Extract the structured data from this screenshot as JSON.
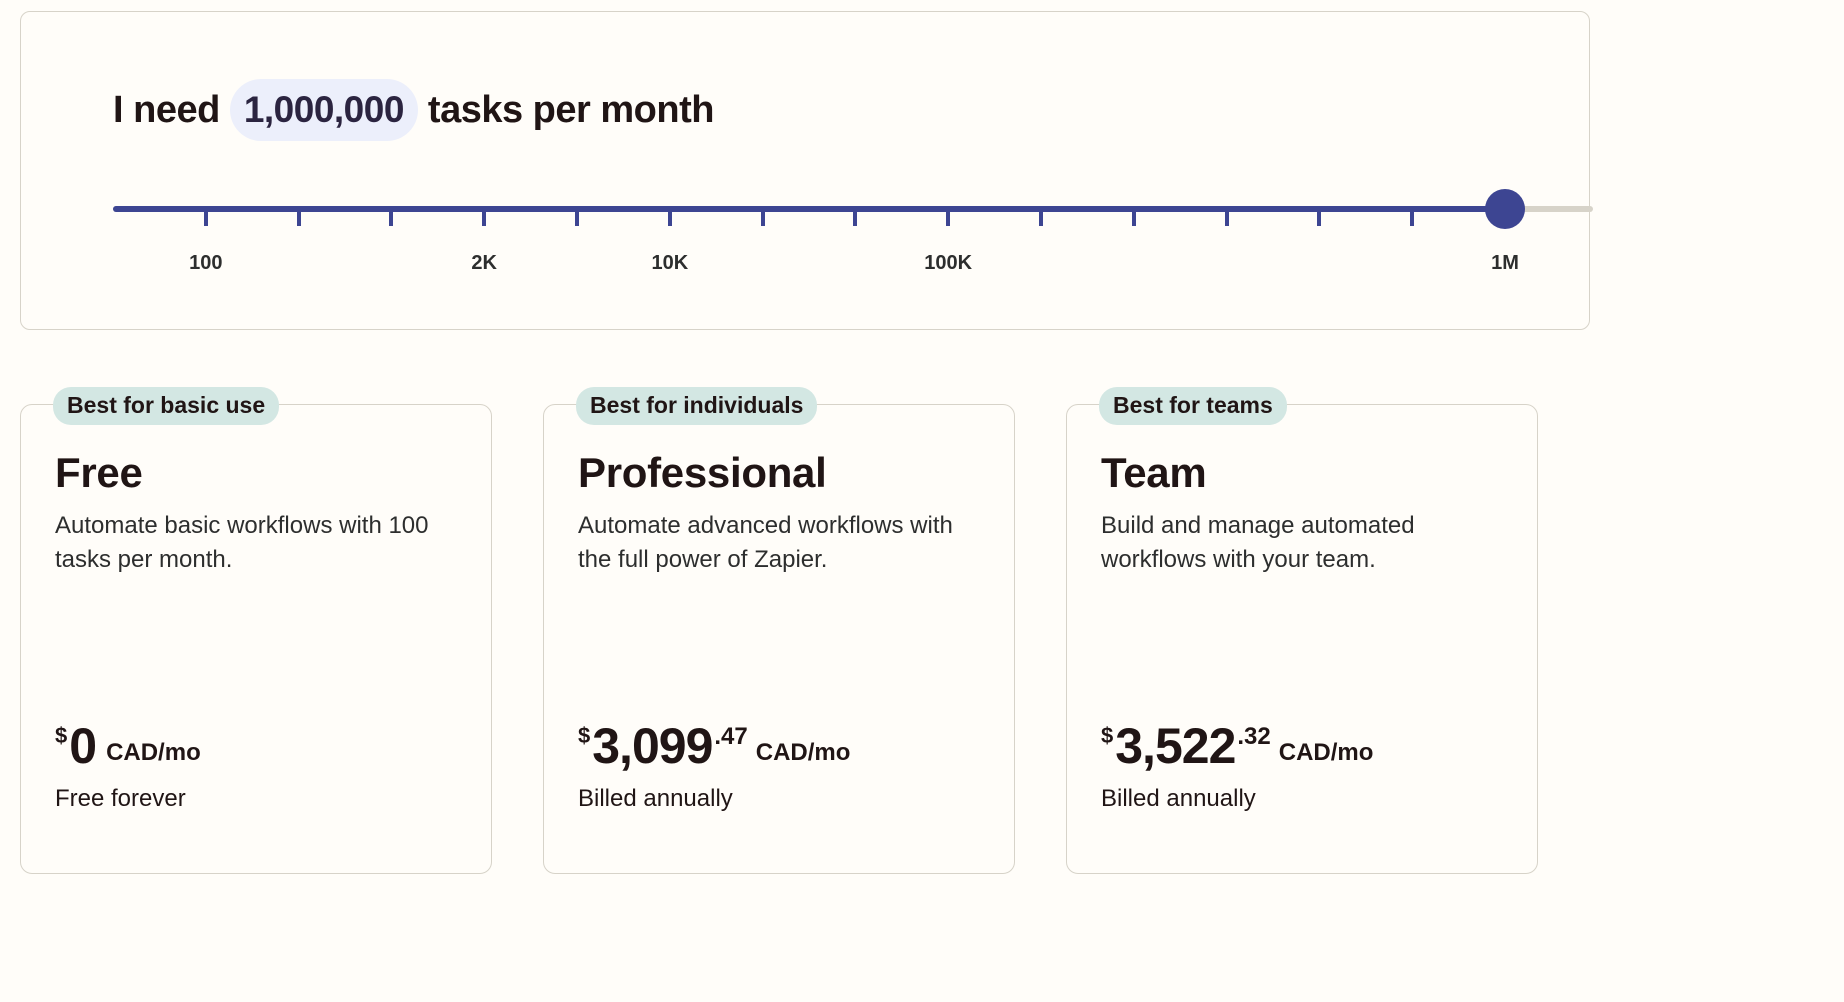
{
  "task_selector": {
    "prefix": "I need",
    "value": "1,000,000",
    "suffix": "tasks per month",
    "slider": {
      "selected_label": "1M",
      "selected_step": 15,
      "steps": 16,
      "labels": [
        {
          "text": "100",
          "step": 1
        },
        {
          "text": "2K",
          "step": 4
        },
        {
          "text": "10K",
          "step": 6
        },
        {
          "text": "100K",
          "step": 9
        },
        {
          "text": "1M",
          "step": 15
        }
      ]
    }
  },
  "plans": [
    {
      "badge": "Best for basic use",
      "name": "Free",
      "description": "Automate basic workflows with 100 tasks per month.",
      "currency": "$",
      "amount": "0",
      "cents": "",
      "unit": "CAD/mo",
      "billing": "Free forever"
    },
    {
      "badge": "Best for individuals",
      "name": "Professional",
      "description": "Automate advanced workflows with the full power of Zapier.",
      "currency": "$",
      "amount": "3,099",
      "cents": ".47",
      "unit": "CAD/mo",
      "billing": "Billed annually"
    },
    {
      "badge": "Best for teams",
      "name": "Team",
      "description": "Build and manage automated workflows with your team.",
      "currency": "$",
      "amount": "3,522",
      "cents": ".32",
      "unit": "CAD/mo",
      "billing": "Billed annually"
    }
  ],
  "colors": {
    "accent": "#3d4592",
    "badge_bg": "#d3e7e3",
    "pill_bg": "#eceffb",
    "page_bg": "#fffdf9"
  }
}
